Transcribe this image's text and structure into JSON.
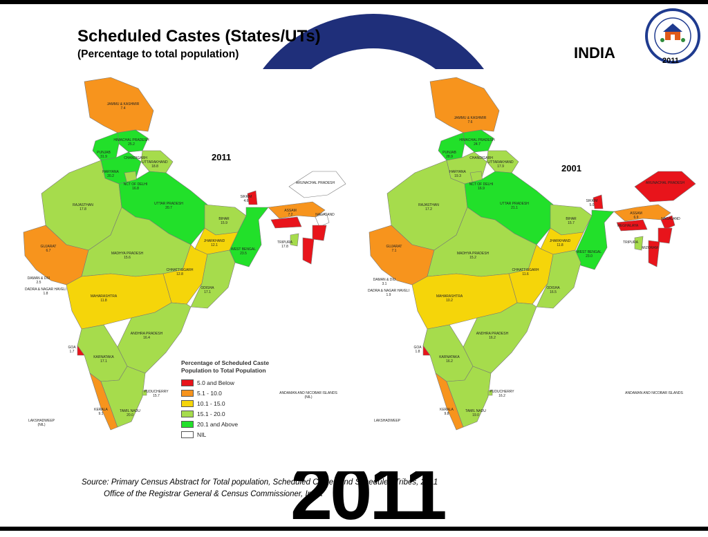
{
  "header": {
    "title": "Scheduled Castes (States/UTs)",
    "subtitle": "(Percentage to total population)",
    "country": "INDIA",
    "logo_year": "2011",
    "logo_text": "CENSUS OF INDIA",
    "background_year": "2011"
  },
  "maps": {
    "left_year": "2011",
    "right_year": "2001"
  },
  "legend": {
    "title_line1": "Percentage of Scheduled Caste",
    "title_line2": "Population to Total Population",
    "items": [
      {
        "label": "5.0 and Below",
        "color": "#e8141b"
      },
      {
        "label": "5.1 - 10.0",
        "color": "#f7941d"
      },
      {
        "label": "10.1 - 15.0",
        "color": "#f5d50a"
      },
      {
        "label": "15.1 - 20.0",
        "color": "#a6dc4c"
      },
      {
        "label": "20.1 and Above",
        "color": "#22e02a"
      },
      {
        "label": "NIL",
        "color": "#ffffff"
      }
    ]
  },
  "states_2011": [
    {
      "name": "JAMMU & KASHMIR",
      "value": "7.4"
    },
    {
      "name": "HIMACHAL PRADESH",
      "value": "25.2"
    },
    {
      "name": "PUNJAB",
      "value": "31.9"
    },
    {
      "name": "CHANDIGARH",
      "value": ""
    },
    {
      "name": "UTTARAKHAND",
      "value": "18.8"
    },
    {
      "name": "HARYANA",
      "value": "20.2"
    },
    {
      "name": "NCT OF DELHI",
      "value": "16.8"
    },
    {
      "name": "RAJASTHAN",
      "value": "17.8"
    },
    {
      "name": "UTTAR PRADESH",
      "value": "20.7"
    },
    {
      "name": "BIHAR",
      "value": "15.9"
    },
    {
      "name": "ARUNACHAL PRADESH",
      "value": ""
    },
    {
      "name": "ASSAM",
      "value": "7.2"
    },
    {
      "name": "NAGALAND",
      "value": ""
    },
    {
      "name": "SIKKIM",
      "value": "4.6"
    },
    {
      "name": "GUJARAT",
      "value": "6.7"
    },
    {
      "name": "MADHYA PRADESH",
      "value": "15.6"
    },
    {
      "name": "JHARKHAND",
      "value": "12.1"
    },
    {
      "name": "WEST BENGAL",
      "value": "23.5"
    },
    {
      "name": "TRIPURA",
      "value": "17.8"
    },
    {
      "name": "CHHATTISGARH",
      "value": "12.8"
    },
    {
      "name": "DAMAN & DIU",
      "value": "2.5"
    },
    {
      "name": "DADRA & NAGAR HAVELI",
      "value": "1.8"
    },
    {
      "name": "MAHARASHTRA",
      "value": "11.8"
    },
    {
      "name": "ODISHA",
      "value": "17.1"
    },
    {
      "name": "ANDHRA PRADESH",
      "value": "16.4"
    },
    {
      "name": "GOA",
      "value": "1.7"
    },
    {
      "name": "KARNATAKA",
      "value": "17.1"
    },
    {
      "name": "PUDUCHERRY",
      "value": "15.7"
    },
    {
      "name": "KERALA",
      "value": "9.1"
    },
    {
      "name": "TAMIL NADU",
      "value": "20.0"
    },
    {
      "name": "LAKSHADWEEP",
      "value": "(NIL)"
    },
    {
      "name": "ANDAMAN AND NICOBAR ISLANDS",
      "value": "(NIL)"
    }
  ],
  "states_2001": [
    {
      "name": "JAMMU & KASHMIR",
      "value": "7.6"
    },
    {
      "name": "HIMACHAL PRADESH",
      "value": "24.7"
    },
    {
      "name": "PUNJAB",
      "value": "28.9"
    },
    {
      "name": "CHANDIGARH",
      "value": ""
    },
    {
      "name": "UTTARAKHAND",
      "value": "17.9"
    },
    {
      "name": "HARYANA",
      "value": "19.3"
    },
    {
      "name": "NCT OF DELHI",
      "value": "16.9"
    },
    {
      "name": "RAJASTHAN",
      "value": "17.2"
    },
    {
      "name": "UTTAR PRADESH",
      "value": "21.1"
    },
    {
      "name": "BIHAR",
      "value": "15.7"
    },
    {
      "name": "ARUNACHAL PRADESH",
      "value": ""
    },
    {
      "name": "ASSAM",
      "value": "6.9"
    },
    {
      "name": "NAGALAND",
      "value": ""
    },
    {
      "name": "SIKKIM",
      "value": "5.0"
    },
    {
      "name": "MEGHALAYA",
      "value": ""
    },
    {
      "name": "GUJARAT",
      "value": "7.1"
    },
    {
      "name": "MADHYA PRADESH",
      "value": "15.2"
    },
    {
      "name": "JHARKHAND",
      "value": "11.8"
    },
    {
      "name": "WEST BENGAL",
      "value": "23.0"
    },
    {
      "name": "TRIPURA",
      "value": ""
    },
    {
      "name": "MIZORAM",
      "value": ""
    },
    {
      "name": "CHHATTISGARH",
      "value": "11.6"
    },
    {
      "name": "DAMAN & DIU",
      "value": "3.1"
    },
    {
      "name": "DADRA & NAGAR HAVELI",
      "value": "1.9"
    },
    {
      "name": "MAHARASHTRA",
      "value": "10.2"
    },
    {
      "name": "ODISHA",
      "value": "16.5"
    },
    {
      "name": "ANDHRA PRADESH",
      "value": "16.2"
    },
    {
      "name": "GOA",
      "value": "1.8"
    },
    {
      "name": "KARNATAKA",
      "value": "16.2"
    },
    {
      "name": "PUDUCHERRY",
      "value": "16.2"
    },
    {
      "name": "KERALA",
      "value": "9.8"
    },
    {
      "name": "TAMIL NADU",
      "value": "19.0"
    },
    {
      "name": "LAKSHADWEEP",
      "value": ""
    },
    {
      "name": "ANDAMAN AND NICOBAR ISLANDS",
      "value": ""
    }
  ],
  "source": {
    "line1": "Source: Primary Census Abstract for Total population, Scheduled Castes and Scheduled Tribes, 2011",
    "line2": "Office of the Registrar General & Census Commissioner, India"
  }
}
